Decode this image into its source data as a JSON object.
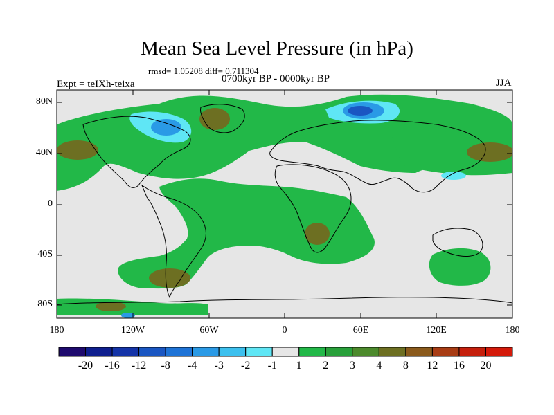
{
  "title": "Mean Sea Level Pressure (in hPa)",
  "stats": "rmsd= 1.05208 diff= 0.711304",
  "expt": "Expt = teIXh-teixa",
  "period": "0700kyr BP - 0000kyr BP",
  "season": "JJA",
  "lat_labels": [
    "80N",
    "40N",
    "0",
    "40S",
    "80S"
  ],
  "lon_labels": [
    "180",
    "120W",
    "60W",
    "0",
    "60E",
    "120E",
    "180"
  ],
  "colorbar": {
    "colors": [
      "#1e0a6e",
      "#0f1f8f",
      "#1434a8",
      "#1a56c2",
      "#1e73d6",
      "#2a9ae6",
      "#3cc0ee",
      "#5fe6f5",
      "#e6e6e6",
      "#22b848",
      "#28a03a",
      "#4c8a2c",
      "#6d6f22",
      "#8a5a1c",
      "#a83c14",
      "#c51f0c",
      "#d41a0a"
    ],
    "labels": [
      "-20",
      "-16",
      "-12",
      "-8",
      "-4",
      "-3",
      "-2",
      "-1",
      "1",
      "2",
      "3",
      "4",
      "8",
      "12",
      "16",
      "20"
    ]
  }
}
